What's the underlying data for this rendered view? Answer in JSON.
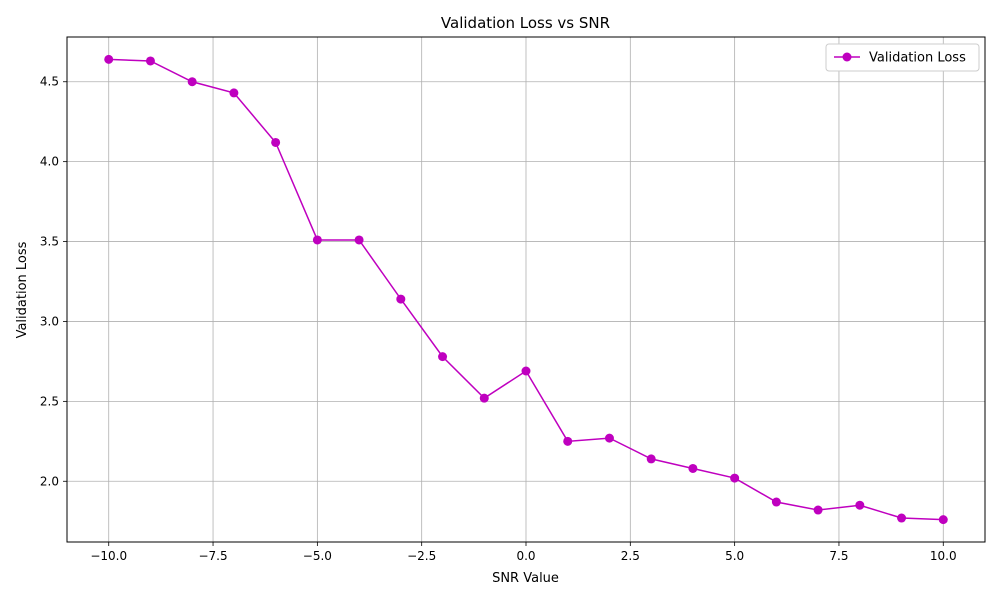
{
  "chart_data": {
    "type": "line",
    "title": "Validation Loss vs SNR",
    "xlabel": "SNR Value",
    "ylabel": "Validation Loss",
    "xlim": [
      -11,
      11
    ],
    "ylim": [
      1.62,
      4.78
    ],
    "grid": true,
    "legend_position": "top-right",
    "x_ticks": [
      -10.0,
      -7.5,
      -5.0,
      -2.5,
      0.0,
      2.5,
      5.0,
      7.5,
      10.0
    ],
    "x_tick_labels": [
      "−10.0",
      "−7.5",
      "−5.0",
      "−2.5",
      "0.0",
      "2.5",
      "5.0",
      "7.5",
      "10.0"
    ],
    "y_ticks": [
      2.0,
      2.5,
      3.0,
      3.5,
      4.0,
      4.5
    ],
    "y_tick_labels": [
      "2.0",
      "2.5",
      "3.0",
      "3.5",
      "4.0",
      "4.5"
    ],
    "series": [
      {
        "name": "Validation Loss",
        "color": "#bf00bf",
        "marker": "circle",
        "x": [
          -10,
          -9,
          -8,
          -7,
          -6,
          -5,
          -4,
          -3,
          -2,
          -1,
          0,
          1,
          2,
          3,
          4,
          5,
          6,
          7,
          8,
          9,
          10
        ],
        "y": [
          4.64,
          4.63,
          4.5,
          4.43,
          4.12,
          3.51,
          3.51,
          3.14,
          2.78,
          2.52,
          2.69,
          2.25,
          2.27,
          2.14,
          2.08,
          2.02,
          1.87,
          1.82,
          1.85,
          1.77,
          1.76
        ]
      }
    ]
  }
}
